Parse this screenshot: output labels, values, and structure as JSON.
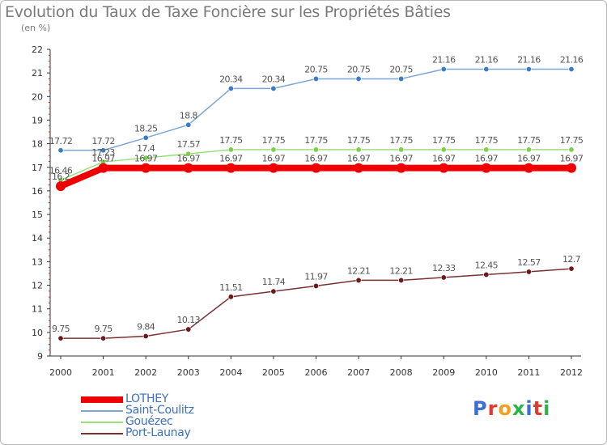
{
  "header": {
    "title": "Evolution du Taux de Taxe Foncière sur les Propriétés Bâties",
    "unit": "(en %)"
  },
  "logo": {
    "text": "Proxiti",
    "letter_colors": [
      "#3b6fd6",
      "#e23a2e",
      "#f0a020",
      "#2bb34a",
      "#3b6fd6",
      "#e23a2e",
      "#2bb34a"
    ]
  },
  "chart_data": {
    "type": "line",
    "x": [
      "2000",
      "2001",
      "2002",
      "2003",
      "2004",
      "2005",
      "2006",
      "2007",
      "2008",
      "2009",
      "2010",
      "2011",
      "2012"
    ],
    "ylim": [
      9,
      22
    ],
    "yticks": [
      9,
      10,
      11,
      12,
      13,
      14,
      15,
      16,
      17,
      18,
      19,
      20,
      21,
      22
    ],
    "grid": false,
    "legend_placement": "bottom-left",
    "series": [
      {
        "name": "Saint-Coulitz",
        "color": "#7aa6d8",
        "marker": "#3b7cc4",
        "values": [
          17.72,
          17.72,
          18.25,
          18.8,
          20.34,
          20.34,
          20.75,
          20.75,
          20.75,
          21.16,
          21.16,
          21.16,
          21.16
        ],
        "labels": [
          "17.72",
          "17.72",
          "18.25",
          "18.8",
          "20.34",
          "20.34",
          "20.75",
          "20.75",
          "20.75",
          "21.16",
          "21.16",
          "21.16",
          "21.16"
        ]
      },
      {
        "name": "Gouézec",
        "color": "#9ae07a",
        "marker": "#7ad04a",
        "values": [
          16.46,
          17.23,
          17.4,
          17.57,
          17.75,
          17.75,
          17.75,
          17.75,
          17.75,
          17.75,
          17.75,
          17.75,
          17.75
        ],
        "labels": [
          "16.46",
          "17.23",
          "17.4",
          "17.57",
          "17.75",
          "17.75",
          "17.75",
          "17.75",
          "17.75",
          "17.75",
          "17.75",
          "17.75",
          "17.75"
        ]
      },
      {
        "name": "LOTHEY",
        "color": "#ee0000",
        "marker": "#ee0000",
        "thick": true,
        "values": [
          16.2,
          16.97,
          16.97,
          16.97,
          16.97,
          16.97,
          16.97,
          16.97,
          16.97,
          16.97,
          16.97,
          16.97,
          16.97
        ],
        "labels": [
          "16.2",
          "16.97",
          "16.97",
          "16.97",
          "16.97",
          "16.97",
          "16.97",
          "16.97",
          "16.97",
          "16.97",
          "16.97",
          "16.97",
          "16.97"
        ]
      },
      {
        "name": "Port-Launay",
        "color": "#7a3030",
        "marker": "#6a1a1a",
        "values": [
          9.75,
          9.75,
          9.84,
          10.13,
          11.51,
          11.74,
          11.97,
          12.21,
          12.21,
          12.33,
          12.45,
          12.57,
          12.7
        ],
        "labels": [
          "9.75",
          "9.75",
          "9.84",
          "10.13",
          "11.51",
          "11.74",
          "11.97",
          "12.21",
          "12.21",
          "12.33",
          "12.45",
          "12.57",
          "12.7"
        ]
      }
    ],
    "legend": [
      {
        "name": "LOTHEY",
        "color": "#ee0000",
        "thick": true
      },
      {
        "name": "Saint-Coulitz",
        "color": "#7aa6d8"
      },
      {
        "name": "Gouézec",
        "color": "#9ae07a"
      },
      {
        "name": "Port-Launay",
        "color": "#7a3030"
      }
    ]
  }
}
